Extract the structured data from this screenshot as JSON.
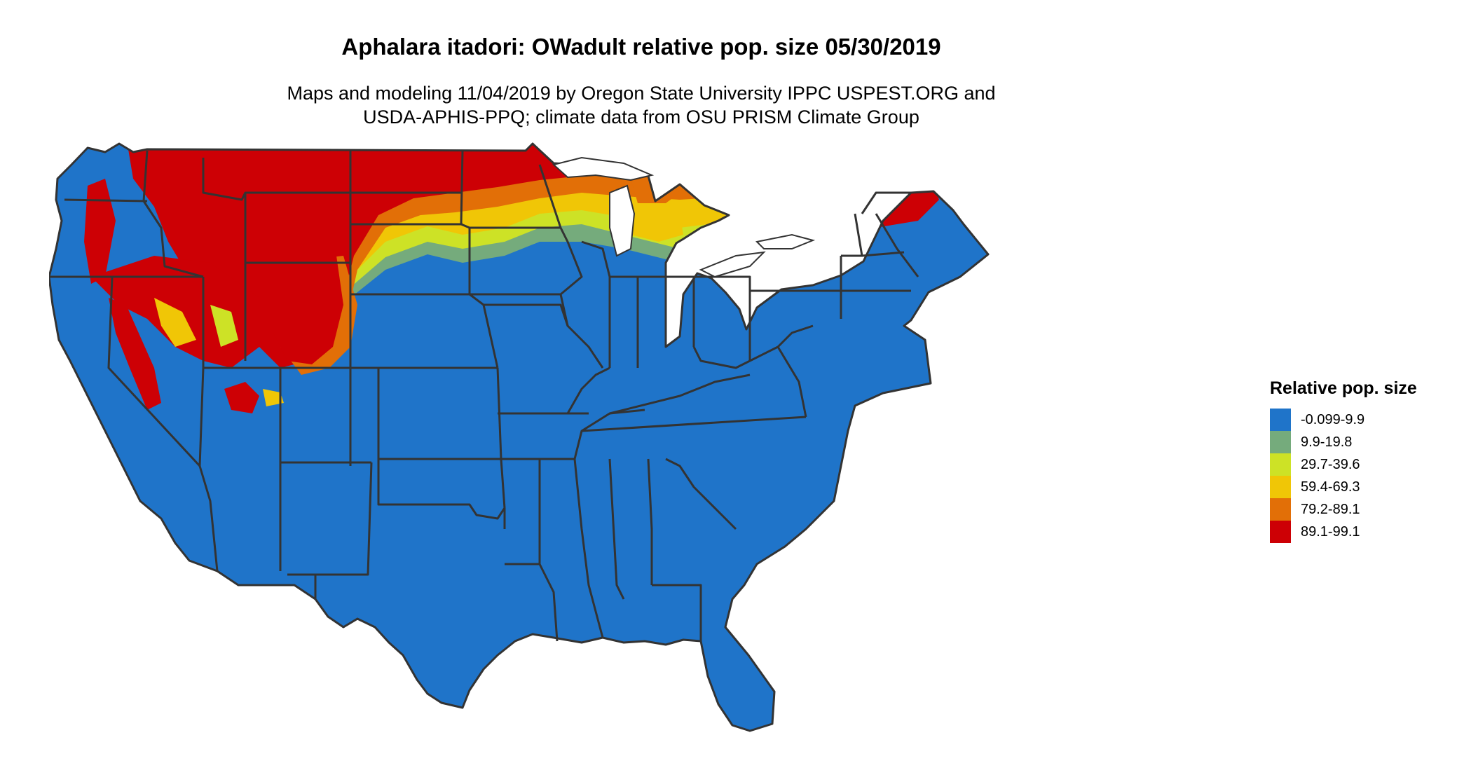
{
  "title": "Aphalara itadori: OWadult relative pop. size 05/30/2019",
  "subtitle_lines": [
    "Maps and modeling 11/04/2019 by Oregon State University IPPC USPEST.ORG and",
    "USDA-APHIS-PPQ; climate data from OSU PRISM Climate Group"
  ],
  "legend": {
    "title": "Relative pop. size",
    "items": [
      {
        "label": "-0.099-9.9",
        "color": "#1f74c9"
      },
      {
        "label": "9.9-19.8",
        "color": "#75ab7c"
      },
      {
        "label": "29.7-39.6",
        "color": "#cde226"
      },
      {
        "label": "59.4-69.3",
        "color": "#f0c606"
      },
      {
        "label": "79.2-89.1",
        "color": "#e26f07"
      },
      {
        "label": "89.1-99.1",
        "color": "#cd0005"
      }
    ]
  },
  "map": {
    "region": "Contiguous United States",
    "border_color": "#333333"
  }
}
